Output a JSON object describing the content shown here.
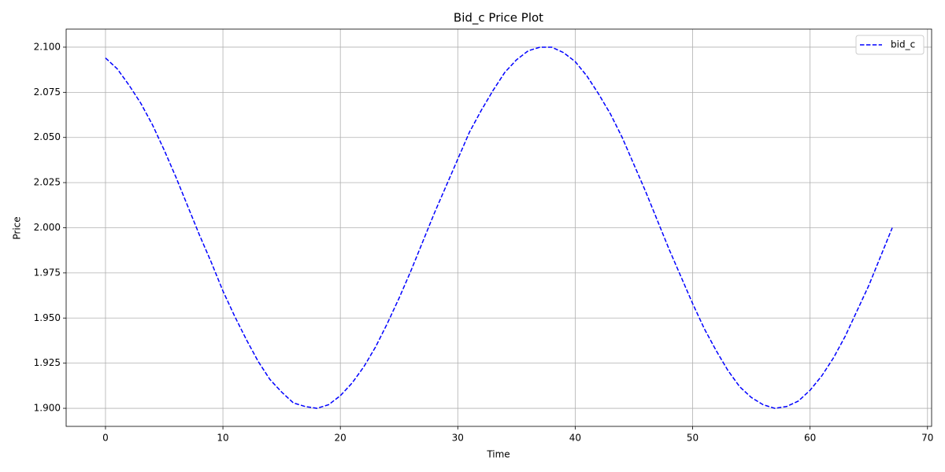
{
  "chart_data": {
    "type": "line",
    "title": "Bid_c Price Plot",
    "x_label": "Time",
    "y_label": "Price",
    "x": [
      0,
      1,
      2,
      3,
      4,
      5,
      6,
      7,
      8,
      9,
      10,
      11,
      12,
      13,
      14,
      15,
      16,
      17,
      18,
      19,
      20,
      21,
      22,
      23,
      24,
      25,
      26,
      27,
      28,
      29,
      30,
      31,
      32,
      33,
      34,
      35,
      36,
      37,
      38,
      39,
      40,
      41,
      42,
      43,
      44,
      45,
      46,
      47,
      48,
      49,
      50,
      51,
      52,
      53,
      54,
      55,
      56,
      57,
      58,
      59,
      60,
      61,
      62,
      63,
      64,
      65,
      66,
      67
    ],
    "series": [
      {
        "name": "bid_c",
        "color": "#0000ff",
        "dashed": true,
        "values": [
          2.094,
          2.088,
          2.079,
          2.069,
          2.057,
          2.043,
          2.028,
          2.012,
          1.996,
          1.981,
          1.965,
          1.951,
          1.938,
          1.926,
          1.916,
          1.909,
          1.903,
          1.901,
          1.9,
          1.902,
          1.907,
          1.914,
          1.923,
          1.934,
          1.947,
          1.961,
          1.976,
          1.992,
          2.008,
          2.023,
          2.038,
          2.053,
          2.065,
          2.076,
          2.086,
          2.093,
          2.098,
          2.1,
          2.1,
          2.097,
          2.092,
          2.084,
          2.074,
          2.063,
          2.05,
          2.035,
          2.02,
          2.004,
          1.988,
          1.973,
          1.958,
          1.944,
          1.932,
          1.921,
          1.912,
          1.906,
          1.902,
          1.9,
          1.901,
          1.904,
          1.91,
          1.918,
          1.928,
          1.94,
          1.954,
          1.968,
          1.984,
          2.0
        ]
      }
    ],
    "xlim": [
      -3.35,
      70.35
    ],
    "ylim": [
      1.89,
      2.11
    ],
    "xticks": [
      0,
      10,
      20,
      30,
      40,
      50,
      60,
      70
    ],
    "yticks": [
      {
        "value": 1.9,
        "label": "1.900"
      },
      {
        "value": 1.925,
        "label": "1.925"
      },
      {
        "value": 1.95,
        "label": "1.950"
      },
      {
        "value": 1.975,
        "label": "1.975"
      },
      {
        "value": 2.0,
        "label": "2.000"
      },
      {
        "value": 2.025,
        "label": "2.025"
      },
      {
        "value": 2.05,
        "label": "2.050"
      },
      {
        "value": 2.075,
        "label": "2.075"
      },
      {
        "value": 2.1,
        "label": "2.100"
      }
    ],
    "grid": true,
    "legend_position": "upper-right"
  }
}
